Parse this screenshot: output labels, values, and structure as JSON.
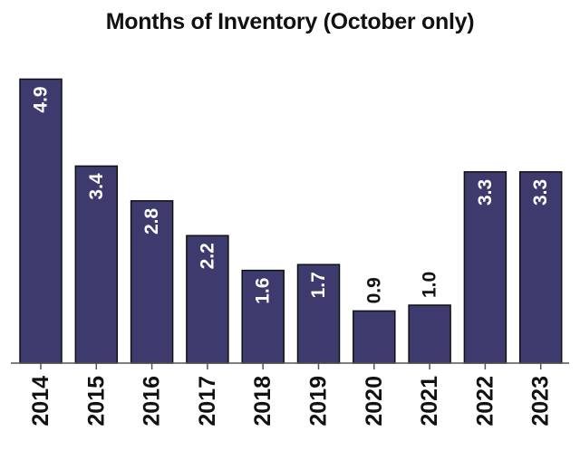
{
  "chart_data": {
    "type": "bar",
    "title": "Months of Inventory (October only)",
    "categories": [
      "2014",
      "2015",
      "2016",
      "2017",
      "2018",
      "2019",
      "2020",
      "2021",
      "2022",
      "2023"
    ],
    "values": [
      4.9,
      3.4,
      2.8,
      2.2,
      1.6,
      1.7,
      0.9,
      1.0,
      3.3,
      3.3
    ],
    "labels": [
      "4.9",
      "3.4",
      "2.8",
      "2.2",
      "1.6",
      "1.7",
      "0.9",
      "1.0",
      "3.3",
      "3.3"
    ],
    "xlabel": "",
    "ylabel": "",
    "ylim": [
      0,
      5
    ],
    "grid": false,
    "bar_color": "#3d3b6e"
  }
}
